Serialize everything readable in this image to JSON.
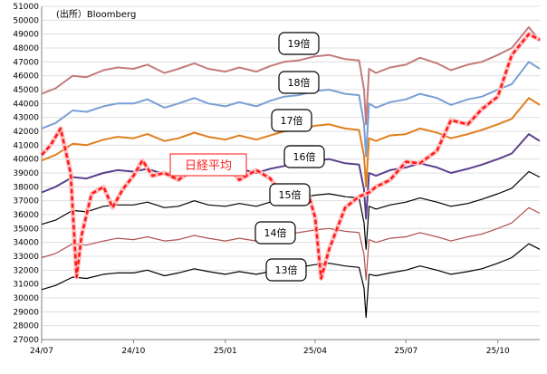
{
  "chart_data": {
    "type": "line",
    "source_note": "(出所）Bloomberg",
    "y_ticks": [
      27000,
      28000,
      29000,
      30000,
      31000,
      32000,
      33000,
      34000,
      35000,
      36000,
      37000,
      38000,
      39000,
      40000,
      41000,
      42000,
      43000,
      44000,
      45000,
      46000,
      47000,
      48000,
      49000,
      50000,
      51000
    ],
    "ylim": [
      27000,
      51000
    ],
    "x_ticks": [
      "24/07",
      "24/10",
      "25/01",
      "25/04",
      "25/07",
      "25/10"
    ],
    "xlim": [
      "2024-07-01",
      "2025-11-12"
    ],
    "grid": "horizontal",
    "index_label": "日経平均",
    "series": [
      {
        "name": "19倍",
        "color": "#c47a7a",
        "width": 2,
        "x": [
          "2024-07-01",
          "2024-07-15",
          "2024-08-01",
          "2024-08-15",
          "2024-09-01",
          "2024-09-15",
          "2024-10-01",
          "2024-10-15",
          "2024-11-01",
          "2024-11-15",
          "2024-12-01",
          "2024-12-15",
          "2025-01-01",
          "2025-01-15",
          "2025-02-01",
          "2025-02-15",
          "2025-03-01",
          "2025-03-15",
          "2025-04-01",
          "2025-04-15",
          "2025-05-01",
          "2025-05-15",
          "2025-05-20",
          "2025-05-22",
          "2025-05-25",
          "2025-06-01",
          "2025-06-15",
          "2025-07-01",
          "2025-07-15",
          "2025-08-01",
          "2025-08-15",
          "2025-09-01",
          "2025-09-15",
          "2025-10-01",
          "2025-10-15",
          "2025-11-01",
          "2025-11-12"
        ],
        "values": [
          44700,
          45100,
          46000,
          45900,
          46400,
          46600,
          46500,
          46800,
          46200,
          46500,
          46900,
          46500,
          46300,
          46600,
          46300,
          46700,
          47000,
          47100,
          47400,
          47500,
          47200,
          47100,
          45000,
          42500,
          46500,
          46200,
          46600,
          46800,
          47300,
          46900,
          46400,
          46800,
          47000,
          47500,
          48000,
          49500,
          48500
        ]
      },
      {
        "name": "18倍",
        "color": "#7a9fd4",
        "width": 2,
        "x": [
          "2024-07-01",
          "2024-07-15",
          "2024-08-01",
          "2024-08-15",
          "2024-09-01",
          "2024-09-15",
          "2024-10-01",
          "2024-10-15",
          "2024-11-01",
          "2024-11-15",
          "2024-12-01",
          "2024-12-15",
          "2025-01-01",
          "2025-01-15",
          "2025-02-01",
          "2025-02-15",
          "2025-03-01",
          "2025-03-15",
          "2025-04-01",
          "2025-04-15",
          "2025-05-01",
          "2025-05-15",
          "2025-05-20",
          "2025-05-22",
          "2025-05-25",
          "2025-06-01",
          "2025-06-15",
          "2025-07-01",
          "2025-07-15",
          "2025-08-01",
          "2025-08-15",
          "2025-09-01",
          "2025-09-15",
          "2025-10-01",
          "2025-10-15",
          "2025-11-01",
          "2025-11-12"
        ],
        "values": [
          42200,
          42600,
          43500,
          43400,
          43800,
          44000,
          44000,
          44300,
          43700,
          44000,
          44400,
          44000,
          43800,
          44100,
          43800,
          44200,
          44500,
          44600,
          44900,
          45000,
          44700,
          44600,
          42500,
          40200,
          44000,
          43700,
          44100,
          44300,
          44700,
          44400,
          43900,
          44300,
          44500,
          45000,
          45400,
          47000,
          46500
        ]
      },
      {
        "name": "17倍",
        "color": "#e07f1f",
        "width": 2,
        "x": [
          "2024-07-01",
          "2024-07-15",
          "2024-08-01",
          "2024-08-15",
          "2024-09-01",
          "2024-09-15",
          "2024-10-01",
          "2024-10-15",
          "2024-11-01",
          "2024-11-15",
          "2024-12-01",
          "2024-12-15",
          "2025-01-01",
          "2025-01-15",
          "2025-02-01",
          "2025-02-15",
          "2025-03-01",
          "2025-03-15",
          "2025-04-01",
          "2025-04-15",
          "2025-05-01",
          "2025-05-15",
          "2025-05-20",
          "2025-05-22",
          "2025-05-25",
          "2025-06-01",
          "2025-06-15",
          "2025-07-01",
          "2025-07-15",
          "2025-08-01",
          "2025-08-15",
          "2025-09-01",
          "2025-09-15",
          "2025-10-01",
          "2025-10-15",
          "2025-11-01",
          "2025-11-12"
        ],
        "values": [
          39900,
          40300,
          41100,
          41000,
          41400,
          41600,
          41500,
          41800,
          41300,
          41500,
          41900,
          41600,
          41400,
          41700,
          41400,
          41700,
          42000,
          42100,
          42400,
          42500,
          42200,
          42100,
          40200,
          38000,
          41500,
          41300,
          41700,
          41800,
          42200,
          41900,
          41500,
          41800,
          42100,
          42500,
          42900,
          44400,
          43900
        ]
      },
      {
        "name": "16倍",
        "color": "#5c3f8c",
        "width": 2,
        "x": [
          "2024-07-01",
          "2024-07-15",
          "2024-08-01",
          "2024-08-15",
          "2024-09-01",
          "2024-09-15",
          "2024-10-01",
          "2024-10-15",
          "2024-11-01",
          "2024-11-15",
          "2024-12-01",
          "2024-12-15",
          "2025-01-01",
          "2025-01-15",
          "2025-02-01",
          "2025-02-15",
          "2025-03-01",
          "2025-03-15",
          "2025-04-01",
          "2025-04-15",
          "2025-05-01",
          "2025-05-15",
          "2025-05-20",
          "2025-05-22",
          "2025-05-25",
          "2025-06-01",
          "2025-06-15",
          "2025-07-01",
          "2025-07-15",
          "2025-08-01",
          "2025-08-15",
          "2025-09-01",
          "2025-09-15",
          "2025-10-01",
          "2025-10-15",
          "2025-11-01",
          "2025-11-12"
        ],
        "values": [
          37600,
          38000,
          38700,
          38600,
          39000,
          39200,
          39100,
          39300,
          38900,
          39100,
          39500,
          39200,
          39000,
          39300,
          39000,
          39300,
          39500,
          39700,
          39900,
          40000,
          39700,
          39600,
          37800,
          35700,
          39000,
          38800,
          39200,
          39400,
          39700,
          39400,
          39000,
          39300,
          39600,
          40000,
          40400,
          41800,
          41300
        ]
      },
      {
        "name": "15倍",
        "color": "#000000",
        "width": 1.2,
        "x": [
          "2024-07-01",
          "2024-07-15",
          "2024-08-01",
          "2024-08-15",
          "2024-09-01",
          "2024-09-15",
          "2024-10-01",
          "2024-10-15",
          "2024-11-01",
          "2024-11-15",
          "2024-12-01",
          "2024-12-15",
          "2025-01-01",
          "2025-01-15",
          "2025-02-01",
          "2025-02-15",
          "2025-03-01",
          "2025-03-15",
          "2025-04-01",
          "2025-04-15",
          "2025-05-01",
          "2025-05-15",
          "2025-05-20",
          "2025-05-22",
          "2025-05-25",
          "2025-06-01",
          "2025-06-15",
          "2025-07-01",
          "2025-07-15",
          "2025-08-01",
          "2025-08-15",
          "2025-09-01",
          "2025-09-15",
          "2025-10-01",
          "2025-10-15",
          "2025-11-01",
          "2025-11-12"
        ],
        "values": [
          35300,
          35600,
          36300,
          36200,
          36600,
          36700,
          36700,
          36900,
          36500,
          36600,
          37000,
          36700,
          36600,
          36800,
          36600,
          36900,
          37100,
          37200,
          37400,
          37500,
          37300,
          37200,
          35400,
          33500,
          36600,
          36400,
          36700,
          36900,
          37200,
          36900,
          36600,
          36800,
          37100,
          37500,
          37900,
          39100,
          38700
        ]
      },
      {
        "name": "14倍",
        "color": "#b05050",
        "width": 1.2,
        "x": [
          "2024-07-01",
          "2024-07-15",
          "2024-08-01",
          "2024-08-15",
          "2024-09-01",
          "2024-09-15",
          "2024-10-01",
          "2024-10-15",
          "2024-11-01",
          "2024-11-15",
          "2024-12-01",
          "2024-12-15",
          "2025-01-01",
          "2025-01-15",
          "2025-02-01",
          "2025-02-15",
          "2025-03-01",
          "2025-03-15",
          "2025-04-01",
          "2025-04-15",
          "2025-05-01",
          "2025-05-15",
          "2025-05-20",
          "2025-05-22",
          "2025-05-25",
          "2025-06-01",
          "2025-06-15",
          "2025-07-01",
          "2025-07-15",
          "2025-08-01",
          "2025-08-15",
          "2025-09-01",
          "2025-09-15",
          "2025-10-01",
          "2025-10-15",
          "2025-11-01",
          "2025-11-12"
        ],
        "values": [
          32900,
          33200,
          33900,
          33800,
          34100,
          34300,
          34200,
          34400,
          34100,
          34200,
          34500,
          34300,
          34100,
          34300,
          34100,
          34400,
          34600,
          34700,
          34900,
          35000,
          34800,
          34700,
          33100,
          31300,
          34200,
          34000,
          34300,
          34400,
          34700,
          34400,
          34100,
          34400,
          34600,
          35000,
          35400,
          36500,
          36100
        ]
      },
      {
        "name": "13倍",
        "color": "#000000",
        "width": 1.2,
        "x": [
          "2024-07-01",
          "2024-07-15",
          "2024-08-01",
          "2024-08-15",
          "2024-09-01",
          "2024-09-15",
          "2024-10-01",
          "2024-10-15",
          "2024-11-01",
          "2024-11-15",
          "2024-12-01",
          "2024-12-15",
          "2025-01-01",
          "2025-01-15",
          "2025-02-01",
          "2025-02-15",
          "2025-03-01",
          "2025-03-15",
          "2025-04-01",
          "2025-04-15",
          "2025-05-01",
          "2025-05-15",
          "2025-05-20",
          "2025-05-22",
          "2025-05-25",
          "2025-06-01",
          "2025-06-15",
          "2025-07-01",
          "2025-07-15",
          "2025-08-01",
          "2025-08-15",
          "2025-09-01",
          "2025-09-15",
          "2025-10-01",
          "2025-10-15",
          "2025-11-01",
          "2025-11-12"
        ],
        "values": [
          30600,
          30900,
          31500,
          31400,
          31700,
          31800,
          31800,
          32000,
          31600,
          31800,
          32100,
          31900,
          31700,
          31900,
          31700,
          31900,
          32100,
          32200,
          32400,
          32500,
          32300,
          32200,
          30700,
          28600,
          31700,
          31600,
          31800,
          32000,
          32300,
          32000,
          31700,
          31900,
          32100,
          32500,
          32900,
          33900,
          33500
        ]
      },
      {
        "name": "日経平均",
        "color": "#ff1a1a",
        "width": 2.6,
        "dashed": true,
        "x": [
          "2024-07-01",
          "2024-07-10",
          "2024-07-20",
          "2024-07-30",
          "2024-08-05",
          "2024-08-10",
          "2024-08-20",
          "2024-09-01",
          "2024-09-10",
          "2024-09-20",
          "2024-10-01",
          "2024-10-10",
          "2024-10-20",
          "2024-11-01",
          "2024-11-15",
          "2024-12-01",
          "2024-12-15",
          "2025-01-01",
          "2025-01-15",
          "2025-02-01",
          "2025-02-15",
          "2025-03-01",
          "2025-03-15",
          "2025-03-25",
          "2025-04-01",
          "2025-04-07",
          "2025-04-15",
          "2025-05-01",
          "2025-05-15",
          "2025-05-25",
          "2025-06-01",
          "2025-06-15",
          "2025-07-01",
          "2025-07-15",
          "2025-08-01",
          "2025-08-15",
          "2025-09-01",
          "2025-09-15",
          "2025-10-01",
          "2025-10-15",
          "2025-11-01",
          "2025-11-12"
        ],
        "values": [
          40300,
          41000,
          42200,
          39000,
          31500,
          34500,
          37500,
          38000,
          36500,
          37800,
          38800,
          39900,
          38800,
          39000,
          38500,
          39300,
          39500,
          39800,
          38500,
          39200,
          38600,
          37200,
          37800,
          37500,
          35800,
          31400,
          33500,
          36500,
          37300,
          37600,
          38000,
          38500,
          39800,
          39700,
          40600,
          42800,
          42500,
          43600,
          44500,
          47500,
          49000,
          48600
        ]
      }
    ]
  }
}
